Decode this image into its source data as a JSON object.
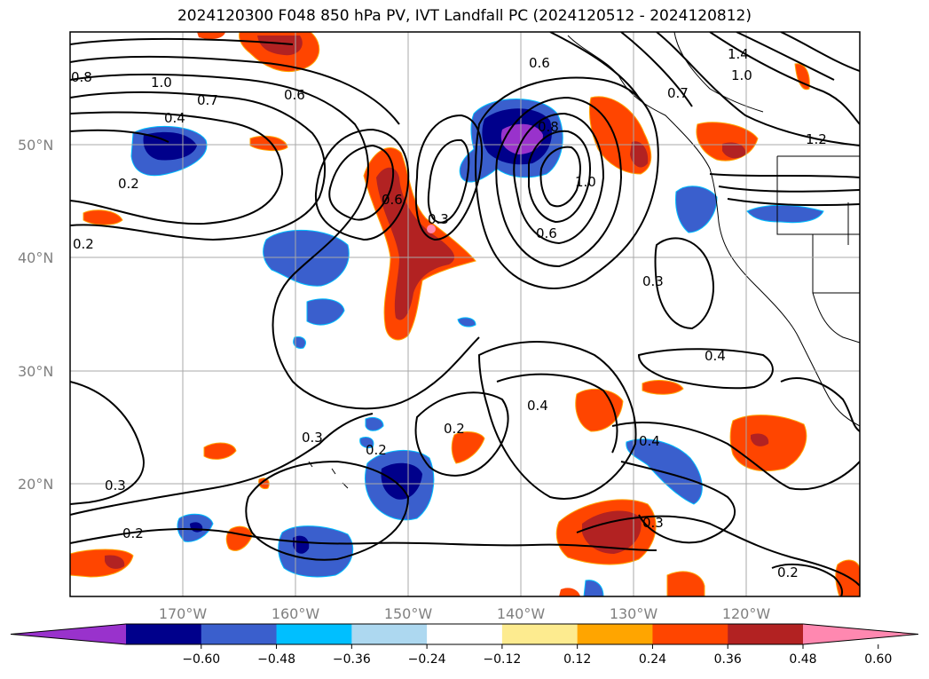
{
  "title": "2024120300 F048 850 hPa PV, IVT Landfall PC (2024120512 - 2024120812)",
  "lat_labels": [
    "50°N",
    "40°N",
    "30°N",
    "20°N"
  ],
  "lon_labels": [
    "170°W",
    "160°W",
    "150°W",
    "140°W",
    "130°W",
    "120°W"
  ],
  "contour_labels": [
    {
      "text": "0.8"
    },
    {
      "text": "1.0"
    },
    {
      "text": "0.7"
    },
    {
      "text": "0.6"
    },
    {
      "text": "0.4"
    },
    {
      "text": "0.2"
    },
    {
      "text": "0.2"
    },
    {
      "text": "0.6"
    },
    {
      "text": "0.3"
    },
    {
      "text": "0.6"
    },
    {
      "text": "0.8"
    },
    {
      "text": "1.0"
    },
    {
      "text": "0.6"
    },
    {
      "text": "0.3"
    },
    {
      "text": "0.4"
    },
    {
      "text": "0.4"
    },
    {
      "text": "0.2"
    },
    {
      "text": "0.3"
    },
    {
      "text": "0.2"
    },
    {
      "text": "0.4"
    },
    {
      "text": "0.3"
    },
    {
      "text": "0.3"
    },
    {
      "text": "0.2"
    },
    {
      "text": "0.2"
    },
    {
      "text": "1.4"
    },
    {
      "text": "1.0"
    },
    {
      "text": "0.7"
    },
    {
      "text": "1.2"
    }
  ],
  "colorbar": {
    "ticks": [
      "−0.60",
      "−0.48",
      "−0.36",
      "−0.24",
      "−0.12",
      "0.12",
      "0.24",
      "0.36",
      "0.48",
      "0.60"
    ],
    "colors": [
      "#9932cc",
      "#00008b",
      "#3a5fcd",
      "#00bfff",
      "#add8f0",
      "#ffffff",
      "#fdeb8f",
      "#ffa500",
      "#ff4500",
      "#b22222",
      "#ff88b0"
    ]
  }
}
